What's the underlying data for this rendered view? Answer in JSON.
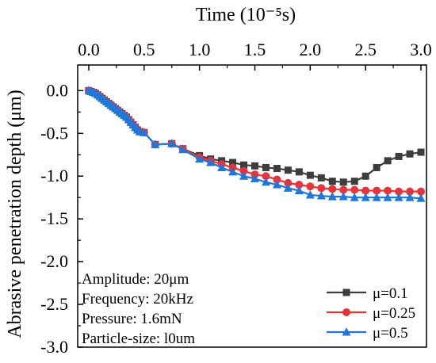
{
  "chart_data": {
    "type": "line",
    "xlabel": "Time (10⁻⁵s)",
    "ylabel": "Abrasive penetration depth (μm)",
    "x_axis_position": "top",
    "xlim": [
      -0.1,
      3.05
    ],
    "ylim": [
      -3.0,
      0.3
    ],
    "x_ticks": [
      0.0,
      0.5,
      1.0,
      1.5,
      2.0,
      2.5,
      3.0
    ],
    "x_tick_labels": [
      "0.0",
      "0.5",
      "1.0",
      "1.5",
      "2.0",
      "2.5",
      "3.0"
    ],
    "y_ticks": [
      0.0,
      -0.5,
      -1.0,
      -1.5,
      -2.0,
      -2.5,
      -3.0
    ],
    "y_tick_labels": [
      "0.0",
      "-0.5",
      "-1.0",
      "-1.5",
      "-2.0",
      "-2.5",
      "-3.0"
    ],
    "grid": false,
    "legend_position": "bottom-right",
    "annotations": [
      "Amplitude: 20μm",
      "Frequency: 20kHz",
      "Pressure: 1.6mN",
      "Particle-size: l0um"
    ],
    "series": [
      {
        "name": "μ=0.1",
        "color": "#3d3d3d",
        "marker": "square",
        "x": [
          0.0,
          0.02,
          0.04,
          0.06,
          0.08,
          0.1,
          0.12,
          0.14,
          0.16,
          0.18,
          0.2,
          0.22,
          0.24,
          0.26,
          0.28,
          0.3,
          0.32,
          0.34,
          0.36,
          0.38,
          0.4,
          0.42,
          0.44,
          0.46,
          0.5,
          0.6,
          0.75,
          0.85,
          1.0,
          1.1,
          1.2,
          1.3,
          1.4,
          1.5,
          1.6,
          1.7,
          1.8,
          1.9,
          2.0,
          2.1,
          2.2,
          2.3,
          2.4,
          2.5,
          2.6,
          2.7,
          2.8,
          2.9,
          3.0
        ],
        "y": [
          0.0,
          -0.01,
          -0.02,
          -0.03,
          -0.05,
          -0.07,
          -0.09,
          -0.11,
          -0.13,
          -0.15,
          -0.17,
          -0.19,
          -0.21,
          -0.23,
          -0.25,
          -0.27,
          -0.29,
          -0.31,
          -0.34,
          -0.37,
          -0.4,
          -0.43,
          -0.46,
          -0.48,
          -0.49,
          -0.63,
          -0.62,
          -0.68,
          -0.76,
          -0.8,
          -0.82,
          -0.84,
          -0.87,
          -0.88,
          -0.9,
          -0.91,
          -0.93,
          -0.95,
          -0.99,
          -1.02,
          -1.06,
          -1.07,
          -1.06,
          -1.0,
          -0.9,
          -0.82,
          -0.77,
          -0.74,
          -0.72
        ]
      },
      {
        "name": "μ=0.25",
        "color": "#e8333a",
        "marker": "circle",
        "x": [
          0.0,
          0.02,
          0.04,
          0.06,
          0.08,
          0.1,
          0.12,
          0.14,
          0.16,
          0.18,
          0.2,
          0.22,
          0.24,
          0.26,
          0.28,
          0.3,
          0.32,
          0.34,
          0.36,
          0.38,
          0.4,
          0.42,
          0.44,
          0.46,
          0.5,
          0.6,
          0.75,
          0.85,
          1.0,
          1.1,
          1.2,
          1.3,
          1.4,
          1.5,
          1.6,
          1.7,
          1.8,
          1.9,
          2.0,
          2.1,
          2.2,
          2.3,
          2.4,
          2.5,
          2.6,
          2.7,
          2.8,
          2.9,
          3.0
        ],
        "y": [
          0.0,
          -0.01,
          -0.02,
          -0.03,
          -0.05,
          -0.07,
          -0.09,
          -0.11,
          -0.13,
          -0.15,
          -0.17,
          -0.19,
          -0.21,
          -0.23,
          -0.25,
          -0.27,
          -0.29,
          -0.31,
          -0.34,
          -0.37,
          -0.4,
          -0.43,
          -0.46,
          -0.48,
          -0.49,
          -0.63,
          -0.62,
          -0.68,
          -0.78,
          -0.82,
          -0.86,
          -0.9,
          -0.94,
          -0.98,
          -1.0,
          -1.04,
          -1.08,
          -1.1,
          -1.12,
          -1.14,
          -1.15,
          -1.16,
          -1.16,
          -1.17,
          -1.17,
          -1.17,
          -1.18,
          -1.18,
          -1.18
        ]
      },
      {
        "name": "μ=0.5",
        "color": "#1f78d9",
        "marker": "triangle",
        "x": [
          0.0,
          0.02,
          0.04,
          0.06,
          0.08,
          0.1,
          0.12,
          0.14,
          0.16,
          0.18,
          0.2,
          0.22,
          0.24,
          0.26,
          0.28,
          0.3,
          0.32,
          0.34,
          0.36,
          0.38,
          0.4,
          0.42,
          0.44,
          0.46,
          0.5,
          0.6,
          0.75,
          0.85,
          1.0,
          1.1,
          1.2,
          1.3,
          1.4,
          1.5,
          1.6,
          1.7,
          1.8,
          1.9,
          2.0,
          2.1,
          2.2,
          2.3,
          2.4,
          2.5,
          2.6,
          2.7,
          2.8,
          2.9,
          3.0
        ],
        "y": [
          0.0,
          -0.01,
          -0.02,
          -0.03,
          -0.05,
          -0.07,
          -0.09,
          -0.11,
          -0.13,
          -0.15,
          -0.17,
          -0.19,
          -0.21,
          -0.23,
          -0.25,
          -0.27,
          -0.29,
          -0.31,
          -0.34,
          -0.37,
          -0.4,
          -0.43,
          -0.46,
          -0.48,
          -0.49,
          -0.63,
          -0.62,
          -0.69,
          -0.8,
          -0.84,
          -0.9,
          -0.95,
          -1.0,
          -1.03,
          -1.07,
          -1.1,
          -1.14,
          -1.17,
          -1.22,
          -1.23,
          -1.24,
          -1.24,
          -1.25,
          -1.25,
          -1.25,
          -1.25,
          -1.25,
          -1.25,
          -1.26
        ]
      }
    ]
  }
}
